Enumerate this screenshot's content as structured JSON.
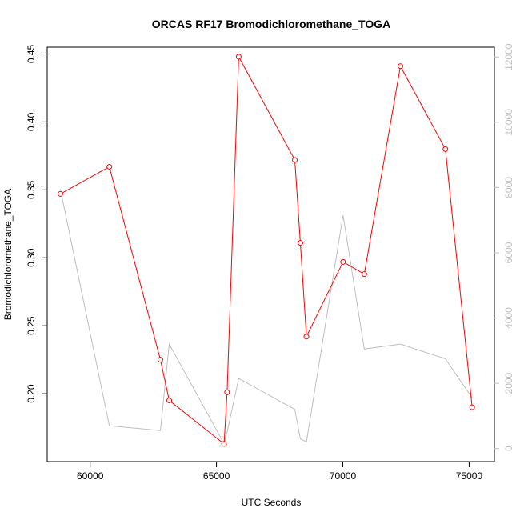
{
  "chart_data": {
    "type": "line",
    "title": "ORCAS RF17 Bromodichloromethane_TOGA",
    "xlabel": "UTC Seconds",
    "ylabel": "Bromodichloromethane_TOGA",
    "xlim": [
      58300,
      76000
    ],
    "ylim": [
      0.15,
      0.455
    ],
    "y2lim": [
      -400,
      12300
    ],
    "xticks": [
      60000,
      65000,
      70000,
      75000
    ],
    "yticks": [
      0.2,
      0.25,
      0.3,
      0.35,
      0.4,
      0.45
    ],
    "y2ticks": [
      0,
      2000,
      4000,
      6000,
      8000,
      10000,
      12000
    ],
    "colors": {
      "primary": "#ff0000",
      "secondary": "#bebebe"
    },
    "series": [
      {
        "axis": "left",
        "style": "line+points",
        "x": [
          58820,
          60760,
          62780,
          63130,
          65300,
          65420,
          65880,
          68100,
          68320,
          68560,
          70010,
          70850,
          72280,
          74060,
          75120
        ],
        "values": [
          0.347,
          0.367,
          0.225,
          0.195,
          0.163,
          0.201,
          0.448,
          0.372,
          0.311,
          0.242,
          0.297,
          0.288,
          0.441,
          0.38,
          0.19
        ]
      },
      {
        "axis": "right",
        "style": "line",
        "x": [
          58820,
          60760,
          62780,
          63130,
          65300,
          65420,
          65880,
          68100,
          68320,
          68560,
          70010,
          70850,
          72280,
          74060,
          75120
        ],
        "values": [
          7950,
          700,
          550,
          3200,
          150,
          500,
          2150,
          1200,
          300,
          200,
          7150,
          3050,
          3200,
          2750,
          1550
        ]
      }
    ]
  }
}
